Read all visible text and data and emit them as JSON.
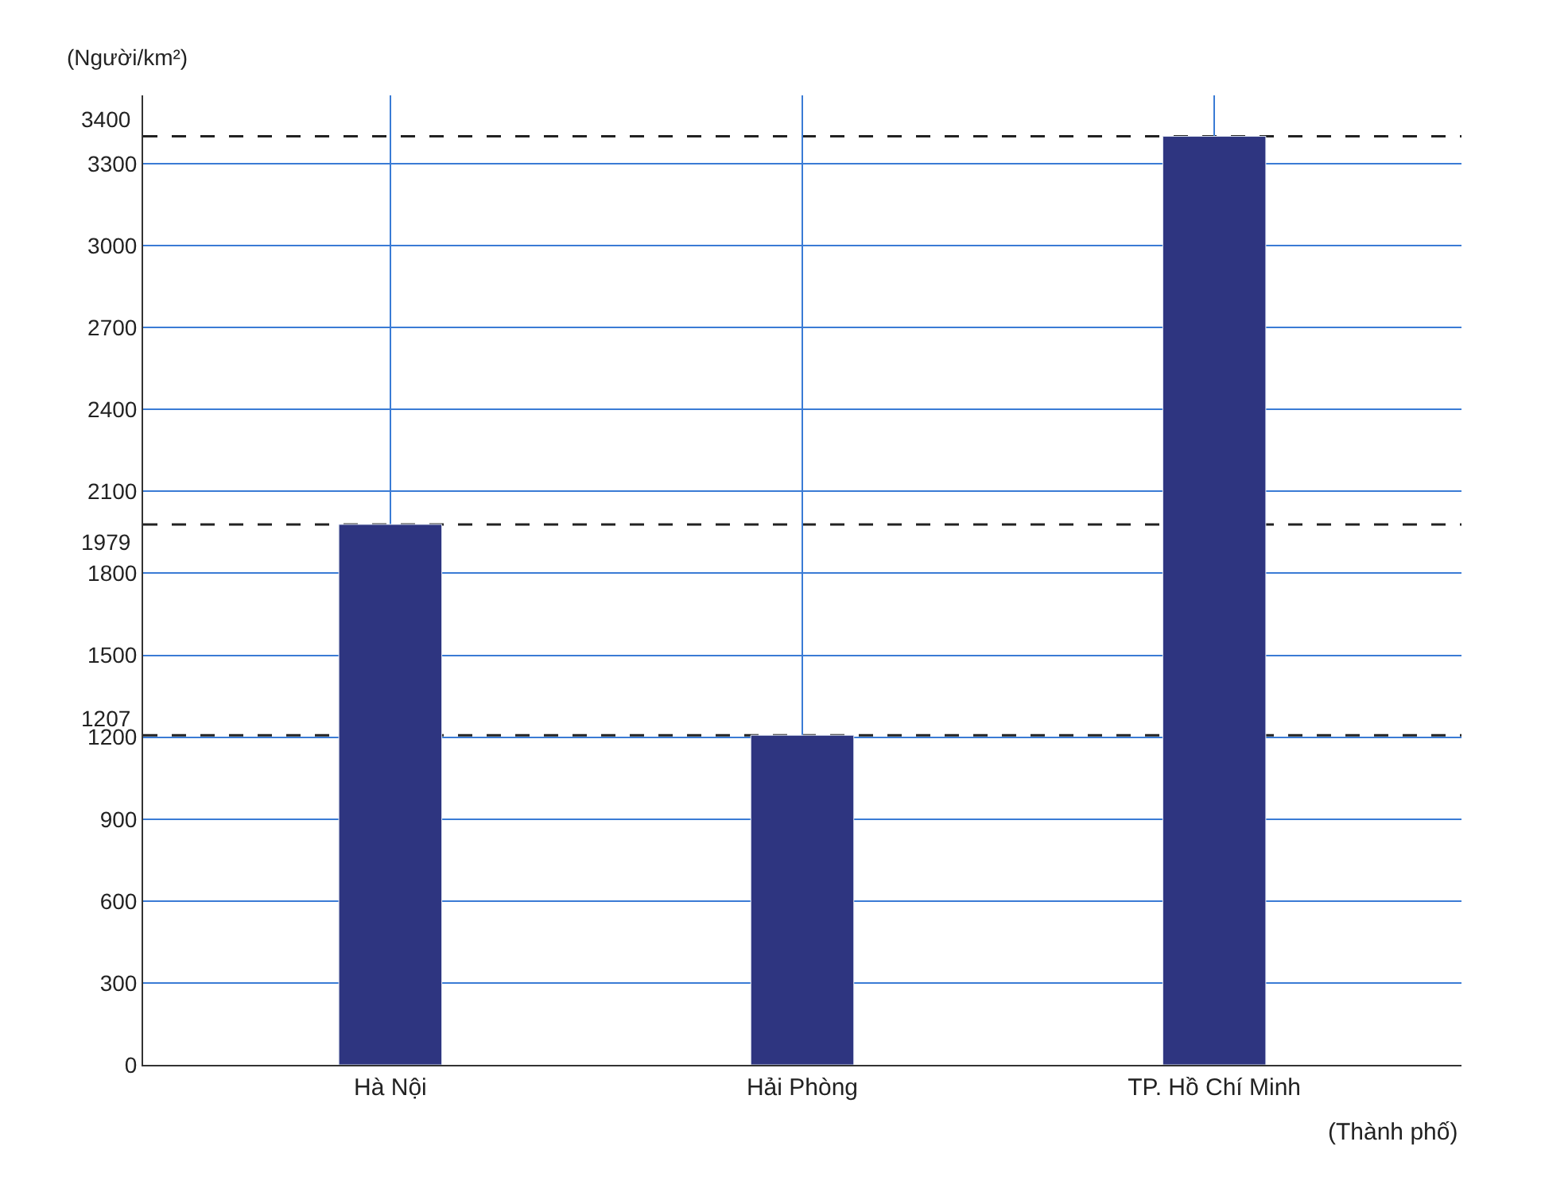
{
  "chart_data": {
    "type": "bar",
    "xlabel": "(Thành phố)",
    "ylabel": "(Người/km²)",
    "categories": [
      "Hà Nội",
      "Hải Phòng",
      "TP. Hồ Chí Minh"
    ],
    "values": [
      1979,
      1207,
      3400
    ],
    "color": "#2e3580",
    "ylim": [
      0,
      3550
    ],
    "yticks": [
      0,
      300,
      600,
      900,
      1200,
      1500,
      1800,
      2100,
      2400,
      2700,
      3000,
      3300
    ],
    "ref_lines": [
      {
        "axis": "y",
        "value": 1979,
        "label": "1979",
        "line_style": "dashed",
        "color": "#222222"
      },
      {
        "axis": "y",
        "value": 1207,
        "label": "1207",
        "line_style": "dashed",
        "color": "#222222"
      },
      {
        "axis": "y",
        "value": 3400,
        "label": "3400",
        "line_style": "dashed",
        "color": "#222222"
      }
    ],
    "grid": true,
    "legend": false
  }
}
